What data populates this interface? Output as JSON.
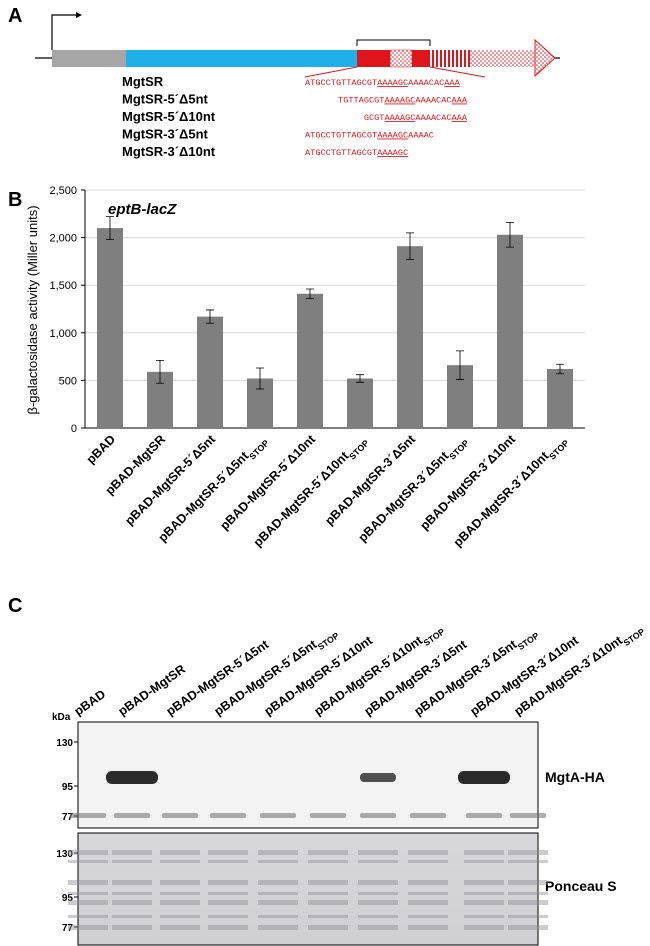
{
  "panel_a": {
    "label": "A",
    "constructs": [
      {
        "name": "MgtSR",
        "sequence": [
          {
            "text": "ATGCCTGTTAGCGT",
            "underline": false
          },
          {
            "text": "AAAAGC",
            "underline": true
          },
          {
            "text": "AAAACAC",
            "underline": false
          },
          {
            "text": "AAA",
            "underline": true
          }
        ]
      },
      {
        "name": "MgtSR-5´Δ5nt",
        "sequence": [
          {
            "text": "TGTTAGCGT",
            "underline": false
          },
          {
            "text": "AAAAGC",
            "underline": true
          },
          {
            "text": "AAAACAC",
            "underline": false
          },
          {
            "text": "AAA",
            "underline": true
          }
        ]
      },
      {
        "name": "MgtSR-5´Δ10nt",
        "sequence": [
          {
            "text": "GCGT",
            "underline": false
          },
          {
            "text": "AAAAGC",
            "underline": true
          },
          {
            "text": "AAAACAC",
            "underline": false
          },
          {
            "text": "AAA",
            "underline": true
          }
        ]
      },
      {
        "name": "MgtSR-3´Δ5nt",
        "sequence": [
          {
            "text": "ATGCCTGTTAGCGT",
            "underline": false
          },
          {
            "text": "AAAAGC",
            "underline": true
          },
          {
            "text": "AAAAC",
            "underline": false
          }
        ]
      },
      {
        "name": "MgtSR-3´Δ10nt",
        "sequence": [
          {
            "text": "ATGCCTGTTAGCGT",
            "underline": false
          },
          {
            "text": "AAAAGC",
            "underline": true
          }
        ]
      }
    ]
  },
  "chart_data": {
    "type": "bar",
    "panel_label": "B",
    "title": "eptB-lacZ",
    "y_label": "β-galactosidase activity (Miller units)",
    "categories": [
      "pBAD",
      "pBAD-MgtSR",
      "pBAD-MgtSR-5´Δ5nt",
      "pBAD-MgtSR-5´Δ5nt",
      "pBAD-MgtSR-5´Δ10nt",
      "pBAD-MgtSR-5´Δ10nt",
      "pBAD-MgtSR-3´Δ5nt",
      "pBAD-MgtSR-3´Δ5nt",
      "pBAD-MgtSR-3´Δ10nt",
      "pBAD-MgtSR-3´Δ10nt"
    ],
    "category_subscripts": [
      null,
      null,
      null,
      "STOP",
      null,
      "STOP",
      null,
      "STOP",
      null,
      "STOP"
    ],
    "values": [
      2100,
      590,
      1170,
      520,
      1410,
      520,
      1910,
      660,
      2030,
      620
    ],
    "errors": [
      120,
      120,
      70,
      110,
      50,
      40,
      140,
      150,
      130,
      50
    ],
    "color": "#7f7f7f",
    "ylim": [
      0,
      2500
    ],
    "yticks": [
      0,
      500,
      {
        "value": 1000,
        "label": "1,000"
      },
      {
        "value": 1500,
        "label": "1,500"
      },
      {
        "value": 2000,
        "label": "2,000"
      },
      {
        "value": 2500,
        "label": "2,500"
      }
    ],
    "grid": true
  },
  "panel_c": {
    "label": "C",
    "lanes": [
      "pBAD",
      "pBAD-MgtSR",
      "pBAD-MgtSR-5´Δ5nt",
      "pBAD-MgtSR-5´Δ5nt",
      "pBAD-MgtSR-5´Δ10nt",
      "pBAD-MgtSR-5´Δ10nt",
      "pBAD-MgtSR-3´Δ5nt",
      "pBAD-MgtSR-3´Δ5nt",
      "pBAD-MgtSR-3´Δ10nt",
      "pBAD-MgtSR-3´Δ10nt"
    ],
    "lane_subscripts": [
      null,
      null,
      null,
      "STOP",
      null,
      "STOP",
      null,
      "STOP",
      null,
      "STOP"
    ],
    "size_unit": "kDa",
    "blots": [
      {
        "name": "MgtA-HA",
        "markers": [
          "130",
          "95",
          "77"
        ]
      },
      {
        "name": "Ponceau S",
        "markers": [
          "130",
          "95",
          "77"
        ]
      }
    ]
  }
}
